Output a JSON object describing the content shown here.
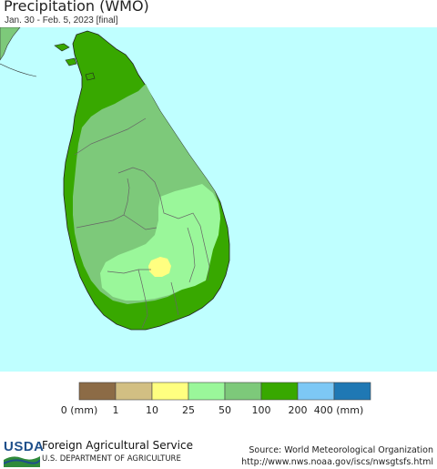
{
  "title": "Precipitation (WMO)",
  "subtitle": "Jan. 30 - Feb. 5, 2023 [final]",
  "legend": {
    "unit_note": "(mm)",
    "labels": [
      "0 (mm)",
      "1",
      "10",
      "25",
      "50",
      "100",
      "200",
      "400 (mm)"
    ],
    "bins": [
      {
        "range": "0-1",
        "color": "#8c6b46"
      },
      {
        "range": "1-10",
        "color": "#d2bf83"
      },
      {
        "range": "10-25",
        "color": "#ffff80"
      },
      {
        "range": "25-50",
        "color": "#9af79a"
      },
      {
        "range": "50-100",
        "color": "#7dc97a"
      },
      {
        "range": "100-200",
        "color": "#38a800"
      },
      {
        "range": "200-400",
        "color": "#7dc8f5"
      },
      {
        "range": "400+",
        "color": "#1f78b4"
      }
    ]
  },
  "map_colors": {
    "ocean": "#bfffff",
    "land_100_200": "#38a800",
    "land_50_100": "#7dc97a",
    "land_25_50": "#9af79a",
    "land_10_25": "#ffff80"
  },
  "footer": {
    "logo_text": "USDA",
    "agency": "Foreign Agricultural Service",
    "department": "U.S. DEPARTMENT OF AGRICULTURE",
    "source_line1": "Source: World Meteorological Organization",
    "source_line2": "http://www.nws.noaa.gov/iscs/nwsgtsfs.html"
  }
}
